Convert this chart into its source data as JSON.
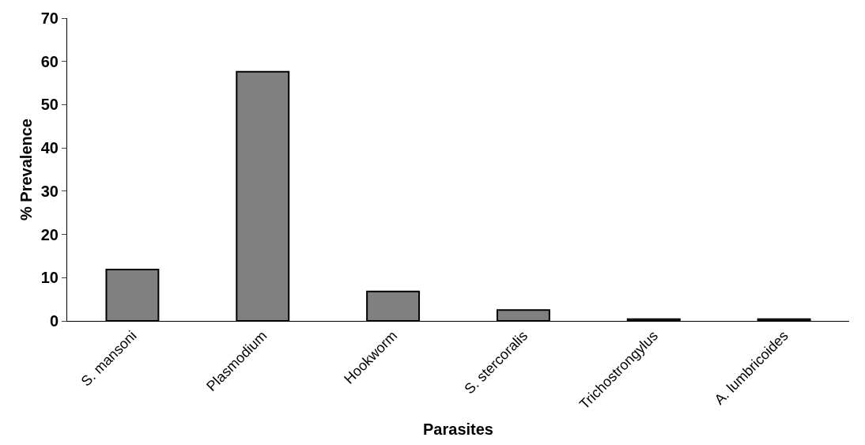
{
  "chart_data": {
    "type": "bar",
    "xlabel": "Parasites",
    "ylabel": "% Prevalence",
    "categories": [
      "S. mansoni",
      "Plasmodium",
      "Hookworm",
      "S. stercoralis",
      "Trichostrongylus",
      "A. lumbricoides"
    ],
    "values": [
      11.9,
      57.6,
      6.8,
      2.5,
      0.4,
      0.4
    ],
    "color": "#808080",
    "ylim": [
      0,
      70
    ],
    "yticks": [
      0,
      10,
      20,
      30,
      40,
      50,
      60,
      70
    ]
  }
}
